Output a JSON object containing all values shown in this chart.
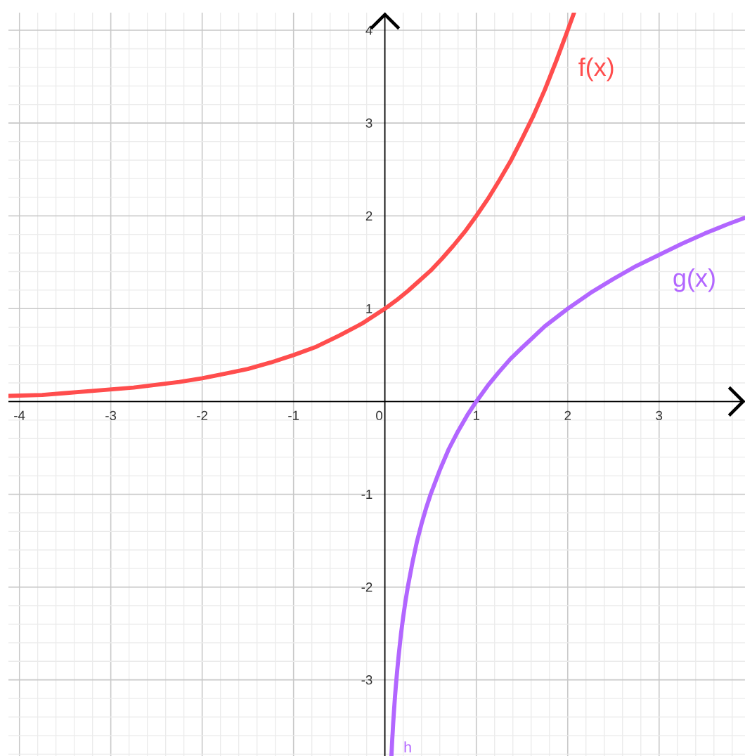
{
  "chart_data": {
    "type": "line",
    "xlim": [
      -4.12,
      3.94
    ],
    "ylim": [
      -3.82,
      4.19
    ],
    "xticks": [
      -4,
      -3,
      -2,
      -1,
      0,
      1,
      2,
      3
    ],
    "yticks": [
      -3,
      -2,
      -1,
      1,
      2,
      3,
      4
    ],
    "grid": true,
    "series": [
      {
        "name": "f(x)",
        "color": "#ff4d4d",
        "x": [
          -4.12,
          -3.75,
          -3.5,
          -3.25,
          -3,
          -2.75,
          -2.5,
          -2.25,
          -2,
          -1.75,
          -1.5,
          -1.25,
          -1,
          -0.75,
          -0.5,
          -0.25,
          0,
          0.125,
          0.25,
          0.375,
          0.5,
          0.625,
          0.75,
          0.875,
          1,
          1.125,
          1.25,
          1.375,
          1.5,
          1.625,
          1.75,
          1.875,
          2,
          2.07
        ],
        "values": [
          0.06,
          0.07,
          0.09,
          0.11,
          0.13,
          0.15,
          0.18,
          0.21,
          0.25,
          0.3,
          0.35,
          0.42,
          0.5,
          0.59,
          0.71,
          0.84,
          1,
          1.09,
          1.19,
          1.3,
          1.41,
          1.54,
          1.68,
          1.83,
          2,
          2.18,
          2.38,
          2.59,
          2.83,
          3.08,
          3.36,
          3.67,
          4,
          4.19
        ]
      },
      {
        "name": "g(x)",
        "color": "#b266ff",
        "x": [
          0.071,
          0.075,
          0.08,
          0.085,
          0.09,
          0.1,
          0.11,
          0.12,
          0.135,
          0.15,
          0.175,
          0.2,
          0.225,
          0.25,
          0.3,
          0.35,
          0.4,
          0.45,
          0.5,
          0.6,
          0.7,
          0.8,
          0.9,
          1,
          1.125,
          1.25,
          1.375,
          1.5,
          1.75,
          2,
          2.25,
          2.5,
          2.75,
          3,
          3.25,
          3.5,
          3.75,
          3.94
        ],
        "values": [
          -3.82,
          -3.74,
          -3.64,
          -3.56,
          -3.47,
          -3.32,
          -3.18,
          -3.06,
          -2.89,
          -2.74,
          -2.51,
          -2.32,
          -2.15,
          -2,
          -1.74,
          -1.51,
          -1.32,
          -1.15,
          -1,
          -0.74,
          -0.51,
          -0.32,
          -0.15,
          0,
          0.17,
          0.32,
          0.46,
          0.58,
          0.81,
          1,
          1.17,
          1.32,
          1.46,
          1.58,
          1.7,
          1.81,
          1.91,
          1.98
        ]
      }
    ],
    "annotations": [
      "h"
    ]
  }
}
